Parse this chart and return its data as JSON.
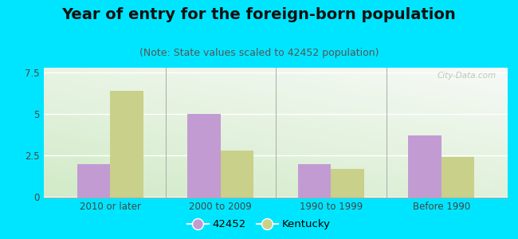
{
  "title": "Year of entry for the foreign-born population",
  "subtitle": "(Note: State values scaled to 42452 population)",
  "categories": [
    "2010 or later",
    "2000 to 2009",
    "1990 to 1999",
    "Before 1990"
  ],
  "series_42452": [
    2.0,
    5.0,
    2.0,
    3.7
  ],
  "series_kentucky": [
    6.4,
    2.8,
    1.7,
    2.4
  ],
  "color_42452": "#c39bd3",
  "color_kentucky": "#c8d08a",
  "ylim": [
    0,
    7.75
  ],
  "yticks": [
    0,
    2.5,
    5,
    7.5
  ],
  "background_outer": "#00e5ff",
  "legend_label_1": "42452",
  "legend_label_2": "Kentucky",
  "bar_width": 0.3,
  "title_fontsize": 14,
  "subtitle_fontsize": 9,
  "watermark": "City-Data.com"
}
